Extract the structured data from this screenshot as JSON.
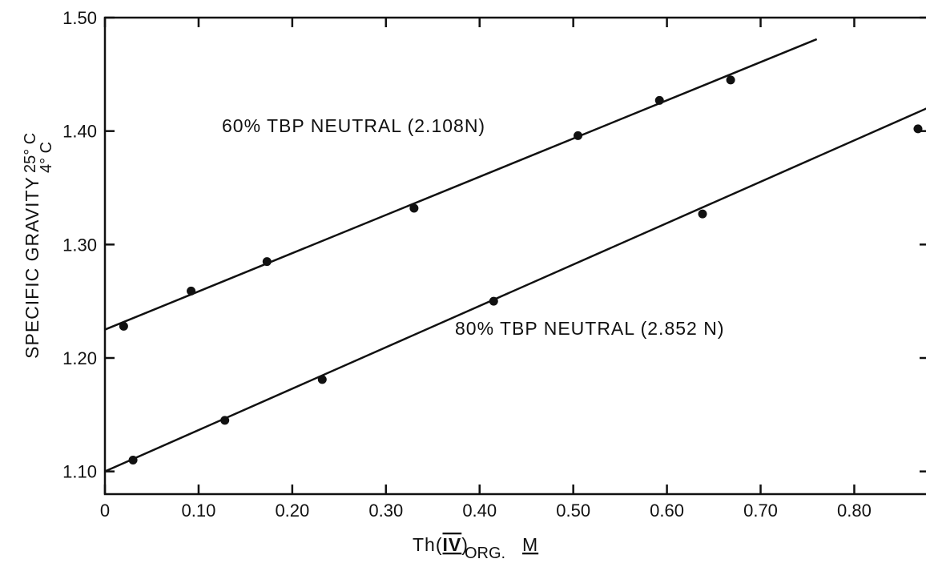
{
  "chart_data": {
    "type": "scatter",
    "xlabel": {
      "main": "Th(",
      "roman": "IV",
      "close": ")",
      "sub": "ORG.",
      "unit": "M"
    },
    "ylabel": {
      "main": "SPECIFIC GRAVITY",
      "sup": "25° C",
      "sub": "4° C"
    },
    "xlim": [
      0,
      0.88
    ],
    "ylim": [
      1.08,
      1.5
    ],
    "xticks": [
      0,
      0.1,
      0.2,
      0.3,
      0.4,
      0.5,
      0.6,
      0.7,
      0.8
    ],
    "xtick_labels": [
      "0",
      "0.10",
      "0.20",
      "0.30",
      "0.40",
      "0.50",
      "0.60",
      "0.70",
      "0.80"
    ],
    "yticks": [
      1.1,
      1.2,
      1.3,
      1.4,
      1.5
    ],
    "ytick_labels": [
      "1.10",
      "1.20",
      "1.30",
      "1.40",
      "1.50"
    ],
    "grid": false,
    "series": [
      {
        "name": "60% TBP NEUTRAL (2.108N)",
        "points": [
          [
            0.02,
            1.228
          ],
          [
            0.092,
            1.259
          ],
          [
            0.173,
            1.285
          ],
          [
            0.33,
            1.332
          ],
          [
            0.505,
            1.396
          ],
          [
            0.592,
            1.427
          ],
          [
            0.668,
            1.445
          ]
        ],
        "fit": [
          [
            0.0,
            1.225
          ],
          [
            0.76,
            1.481
          ]
        ]
      },
      {
        "name": "80% TBP NEUTRAL (2.852 N)",
        "points": [
          [
            0.03,
            1.11
          ],
          [
            0.128,
            1.145
          ],
          [
            0.232,
            1.181
          ],
          [
            0.415,
            1.25
          ],
          [
            0.638,
            1.327
          ],
          [
            0.868,
            1.402
          ]
        ],
        "fit": [
          [
            0.0,
            1.1
          ],
          [
            0.88,
            1.421
          ]
        ]
      }
    ]
  }
}
